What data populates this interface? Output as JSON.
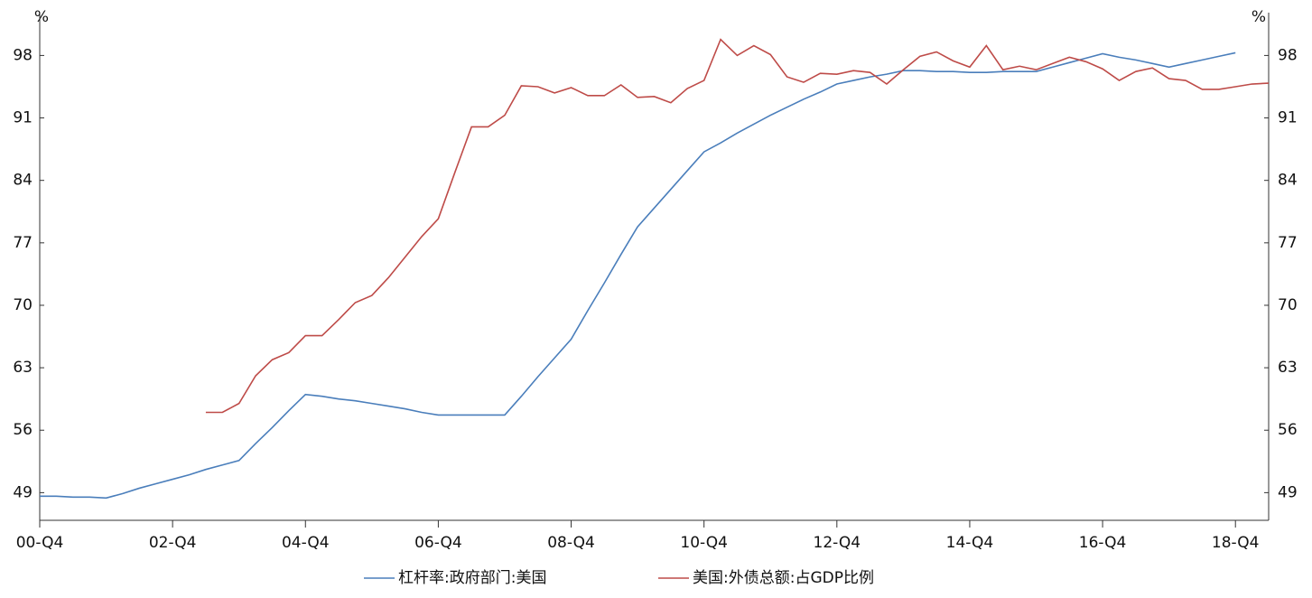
{
  "chart_data": {
    "type": "line",
    "ylabel": "%",
    "y2label": "%",
    "categories": [
      "00-Q4",
      null,
      null,
      null,
      null,
      null,
      null,
      null,
      "02-Q4",
      null,
      null,
      null,
      null,
      null,
      null,
      null,
      "04-Q4",
      null,
      null,
      null,
      null,
      null,
      null,
      null,
      "06-Q4",
      null,
      null,
      null,
      null,
      null,
      null,
      null,
      "08-Q4",
      null,
      null,
      null,
      null,
      null,
      null,
      null,
      "10-Q4",
      null,
      null,
      null,
      null,
      null,
      null,
      null,
      "12-Q4",
      null,
      null,
      null,
      null,
      null,
      null,
      null,
      "14-Q4",
      null,
      null,
      null,
      null,
      null,
      null,
      null,
      "16-Q4",
      null,
      null,
      null,
      null,
      null,
      null,
      null,
      "18-Q4",
      null,
      null
    ],
    "ylim": [
      45.9,
      102.8
    ],
    "yticks": [
      49,
      56,
      63,
      70,
      77,
      84,
      91,
      98
    ],
    "y2lim": [
      45.9,
      102.8
    ],
    "y2ticks": [
      49,
      56,
      63,
      70,
      77,
      84,
      91,
      98
    ],
    "series": [
      {
        "name": "杠杆率:政府部门:美国",
        "color": "#4a7ebb",
        "axis": "y",
        "values": [
          48.6,
          48.6,
          48.5,
          48.5,
          48.4,
          48.9,
          49.5,
          50.0,
          50.5,
          51.0,
          51.6,
          52.1,
          52.6,
          54.5,
          56.3,
          58.2,
          60.0,
          59.8,
          59.5,
          59.3,
          59.0,
          58.7,
          58.4,
          58.0,
          57.7,
          57.7,
          57.7,
          57.7,
          57.7,
          59.8,
          62.0,
          64.1,
          66.2,
          69.4,
          72.5,
          75.7,
          78.8,
          80.9,
          83.0,
          85.1,
          87.2,
          88.2,
          89.3,
          90.3,
          91.3,
          92.2,
          93.1,
          93.9,
          94.8,
          95.2,
          95.6,
          95.9,
          96.3,
          96.3,
          96.2,
          96.2,
          96.1,
          96.1,
          96.2,
          96.2,
          96.2,
          96.7,
          97.2,
          97.7,
          98.2,
          97.8,
          97.5,
          97.1,
          96.7,
          97.1,
          97.5,
          97.9,
          98.3,
          null,
          null
        ]
      },
      {
        "name": "美国:外债总额:占GDP比例",
        "color": "#be4b48",
        "axis": "y2",
        "values": [
          null,
          null,
          null,
          null,
          null,
          null,
          null,
          null,
          null,
          null,
          58.0,
          58.0,
          59.0,
          62.1,
          63.9,
          64.7,
          66.6,
          66.6,
          68.4,
          70.3,
          71.1,
          73.1,
          75.4,
          77.7,
          79.7,
          84.9,
          90.0,
          90.0,
          91.3,
          94.6,
          94.5,
          93.8,
          94.4,
          93.5,
          93.5,
          94.7,
          93.3,
          93.4,
          92.7,
          94.3,
          95.2,
          99.8,
          98.0,
          99.1,
          98.1,
          95.6,
          95.0,
          96.0,
          95.9,
          96.3,
          96.1,
          94.8,
          96.4,
          97.9,
          98.4,
          97.4,
          96.7,
          99.1,
          96.4,
          96.8,
          96.4,
          97.1,
          97.8,
          97.3,
          96.5,
          95.2,
          96.2,
          96.6,
          95.4,
          95.2,
          94.2,
          94.2,
          94.5,
          94.8,
          94.9
        ]
      }
    ]
  }
}
